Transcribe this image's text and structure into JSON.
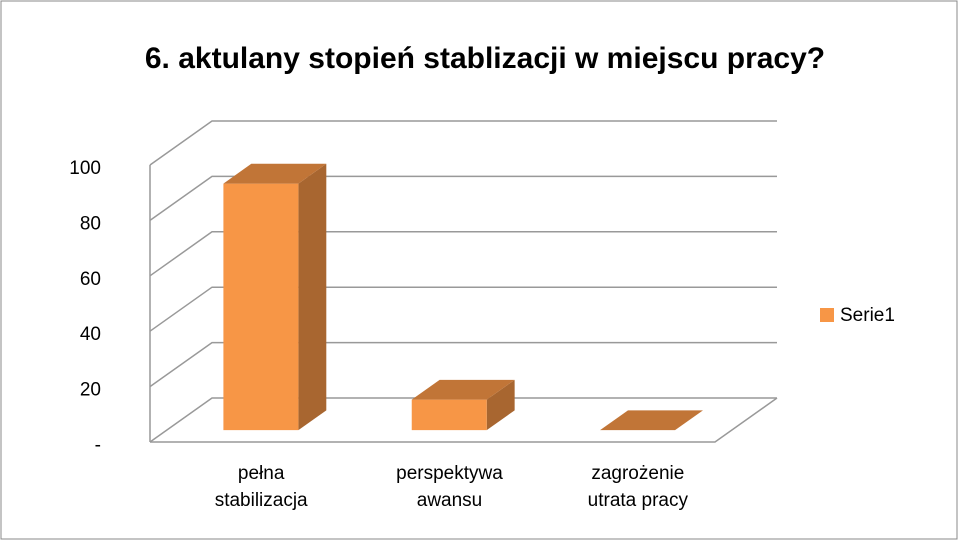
{
  "chart_data": {
    "type": "bar3d",
    "title": "6. aktulany stopień stablizacji w miejscu pracy?",
    "categories": [
      "pełna stabilizacja",
      "perspektywa awansu",
      "zagrożenie utrata pracy"
    ],
    "series": [
      {
        "name": "Serie1",
        "color": "#f79646",
        "values": [
          89,
          11,
          0
        ]
      }
    ],
    "ylim": [
      0,
      100
    ],
    "yticks": [
      {
        "value": 0,
        "label": "-"
      },
      20,
      40,
      60,
      80,
      100
    ],
    "grid": true,
    "legend": "right"
  }
}
